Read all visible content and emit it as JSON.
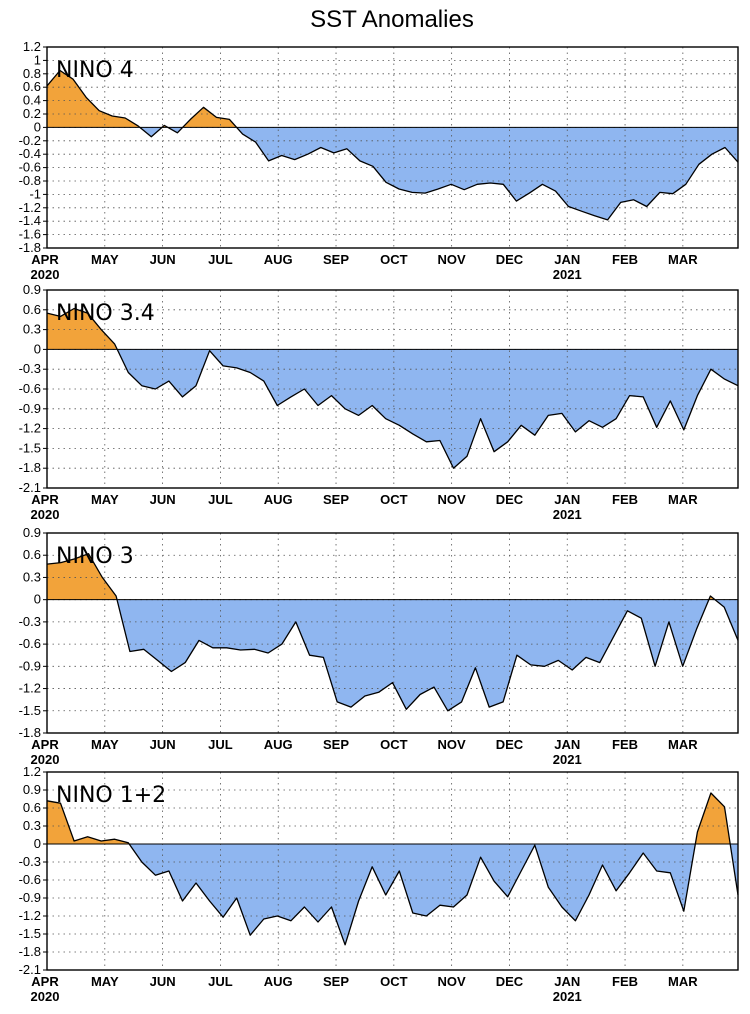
{
  "page": {
    "title": "SST Anomalies"
  },
  "colors": {
    "positive": "#F2A33A",
    "negative": "#8FB6F0",
    "line": "#000000",
    "grid": "#555555"
  },
  "axis": {
    "months": [
      "APR",
      "MAY",
      "JUN",
      "JUL",
      "AUG",
      "SEP",
      "OCT",
      "NOV",
      "DEC",
      "JAN",
      "FEB",
      "MAR"
    ],
    "year_labels": [
      {
        "label": "2020",
        "under": "APR"
      },
      {
        "label": "2021",
        "under": "JAN"
      }
    ],
    "weeks_per_month": 4.35
  },
  "chart_data": [
    {
      "type": "area",
      "title": "NINO 4",
      "ylim": [
        -1.8,
        1.2
      ],
      "yticks": [
        "1.2",
        "1",
        "0.8",
        "0.6",
        "0.4",
        "0.2",
        "0",
        "-0.2",
        "-0.4",
        "-0.6",
        "-0.8",
        "-1",
        "-1.2",
        "-1.4",
        "-1.6",
        "-1.8"
      ],
      "ytick_values": [
        1.2,
        1.0,
        0.8,
        0.6,
        0.4,
        0.2,
        0,
        -0.2,
        -0.4,
        -0.6,
        -0.8,
        -1.0,
        -1.2,
        -1.4,
        -1.6,
        -1.8
      ],
      "grid": true,
      "x_unit": "weeks from start of APR 2020",
      "values": [
        0.62,
        0.85,
        0.72,
        0.45,
        0.25,
        0.17,
        0.14,
        0.02,
        -0.14,
        0.03,
        -0.08,
        0.12,
        0.3,
        0.15,
        0.12,
        -0.1,
        -0.22,
        -0.5,
        -0.42,
        -0.48,
        -0.4,
        -0.3,
        -0.38,
        -0.32,
        -0.5,
        -0.58,
        -0.82,
        -0.92,
        -0.97,
        -0.98,
        -0.92,
        -0.85,
        -0.93,
        -0.85,
        -0.83,
        -0.85,
        -1.1,
        -0.98,
        -0.85,
        -0.95,
        -1.18,
        -1.25,
        -1.32,
        -1.38,
        -1.12,
        -1.08,
        -1.18,
        -0.97,
        -0.99,
        -0.85,
        -0.55,
        -0.4,
        -0.3,
        -0.52
      ]
    },
    {
      "type": "area",
      "title": "NINO 3.4",
      "ylim": [
        -2.1,
        0.9
      ],
      "yticks": [
        "0.9",
        "0.6",
        "0.3",
        "0",
        "-0.3",
        "-0.6",
        "-0.9",
        "-1.2",
        "-1.5",
        "-1.8",
        "-2.1"
      ],
      "ytick_values": [
        0.9,
        0.6,
        0.3,
        0,
        -0.3,
        -0.6,
        -0.9,
        -1.2,
        -1.5,
        -1.8,
        -2.1
      ],
      "grid": true,
      "x_unit": "weeks from start of APR 2020",
      "values": [
        0.55,
        0.5,
        0.62,
        0.55,
        0.3,
        0.08,
        -0.35,
        -0.55,
        -0.6,
        -0.48,
        -0.72,
        -0.55,
        -0.02,
        -0.25,
        -0.28,
        -0.35,
        -0.48,
        -0.85,
        -0.72,
        -0.6,
        -0.85,
        -0.7,
        -0.9,
        -1.0,
        -0.85,
        -1.05,
        -1.15,
        -1.28,
        -1.4,
        -1.38,
        -1.8,
        -1.62,
        -1.05,
        -1.55,
        -1.4,
        -1.15,
        -1.3,
        -1.0,
        -0.97,
        -1.25,
        -1.08,
        -1.18,
        -1.05,
        -0.7,
        -0.72,
        -1.18,
        -0.78,
        -1.22,
        -0.7,
        -0.3,
        -0.45,
        -0.55
      ]
    },
    {
      "type": "area",
      "title": "NINO 3",
      "ylim": [
        -1.8,
        0.9
      ],
      "yticks": [
        "0.9",
        "0.6",
        "0.3",
        "0",
        "-0.3",
        "-0.6",
        "-0.9",
        "-1.2",
        "-1.5",
        "-1.8"
      ],
      "ytick_values": [
        0.9,
        0.6,
        0.3,
        0,
        -0.3,
        -0.6,
        -0.9,
        -1.2,
        -1.5,
        -1.8
      ],
      "grid": true,
      "x_unit": "weeks from start of APR 2020",
      "values": [
        0.48,
        0.5,
        0.55,
        0.62,
        0.3,
        0.05,
        -0.7,
        -0.67,
        -0.82,
        -0.97,
        -0.85,
        -0.55,
        -0.65,
        -0.65,
        -0.68,
        -0.67,
        -0.72,
        -0.6,
        -0.3,
        -0.75,
        -0.78,
        -1.38,
        -1.45,
        -1.3,
        -1.25,
        -1.12,
        -1.48,
        -1.28,
        -1.18,
        -1.5,
        -1.38,
        -0.92,
        -1.45,
        -1.38,
        -0.75,
        -0.88,
        -0.9,
        -0.82,
        -0.95,
        -0.78,
        -0.85,
        -0.5,
        -0.15,
        -0.25,
        -0.9,
        -0.3,
        -0.9,
        -0.4,
        0.05,
        -0.1,
        -0.55
      ]
    },
    {
      "type": "area",
      "title": "NINO 1+2",
      "ylim": [
        -2.1,
        1.2
      ],
      "yticks": [
        "1.2",
        "0.9",
        "0.6",
        "0.3",
        "0",
        "-0.3",
        "-0.6",
        "-0.9",
        "-1.2",
        "-1.5",
        "-1.8",
        "-2.1"
      ],
      "ytick_values": [
        1.2,
        0.9,
        0.6,
        0.3,
        0,
        -0.3,
        -0.6,
        -0.9,
        -1.2,
        -1.5,
        -1.8,
        -2.1
      ],
      "grid": true,
      "x_unit": "weeks from start of APR 2020",
      "values": [
        0.72,
        0.68,
        0.05,
        0.12,
        0.05,
        0.08,
        0.02,
        -0.3,
        -0.52,
        -0.45,
        -0.95,
        -0.65,
        -0.95,
        -1.22,
        -0.9,
        -1.52,
        -1.25,
        -1.2,
        -1.28,
        -1.05,
        -1.3,
        -1.05,
        -1.68,
        -0.95,
        -0.38,
        -0.85,
        -0.45,
        -1.15,
        -1.2,
        -1.02,
        -1.05,
        -0.85,
        -0.22,
        -0.62,
        -0.88,
        -0.45,
        -0.02,
        -0.72,
        -1.05,
        -1.28,
        -0.85,
        -0.35,
        -0.78,
        -0.48,
        -0.15,
        -0.45,
        -0.48,
        -1.12,
        0.2,
        0.85,
        0.62,
        -0.85
      ]
    }
  ]
}
